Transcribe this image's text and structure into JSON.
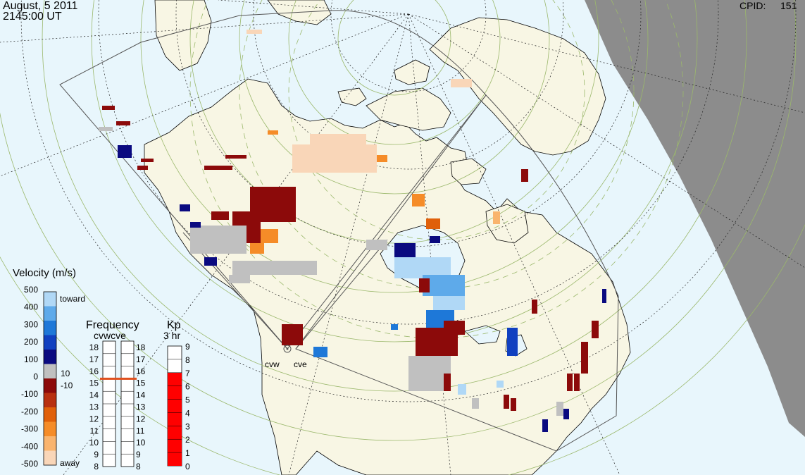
{
  "header": {
    "date": "August, 5 2011",
    "time": "2145:00 UT",
    "cpid_label": "CPID:",
    "cpid_value": "151"
  },
  "colors": {
    "ocean": "#e8f6fc",
    "land": "#f8f6e4",
    "night": "#8c8c8c",
    "ground_scatter": "#c0c0c0"
  },
  "radars": [
    {
      "code": "cvw"
    },
    {
      "code": "cve"
    }
  ],
  "velocity_scale": {
    "title": "Velocity (m/s)",
    "ticks": [
      "500",
      "400",
      "300",
      "200",
      "100",
      "0",
      "-100",
      "-200",
      "-300",
      "-400",
      "-500"
    ],
    "toward_label": "toward",
    "away_label": "away",
    "gs_upper": "10",
    "gs_lower": "-10",
    "colors": [
      "#f9d6b8",
      "#f9b46e",
      "#f58c28",
      "#e0600a",
      "#b83010",
      "#8c0a0a",
      "#c0c0c0",
      "#0a0a80",
      "#1040c0",
      "#1e78d8",
      "#5eaaea",
      "#b0d8f6"
    ]
  },
  "frequency_panel": {
    "title": "Frequency",
    "subtitle": "cvwcve",
    "ticks": [
      "18",
      "17",
      "16",
      "15",
      "14",
      "13",
      "12",
      "11",
      "10",
      "9",
      "8"
    ],
    "cvw_value": 15,
    "cve_value": 15
  },
  "kp_panel": {
    "title": "Kp",
    "subtitle": "3 hr",
    "ticks": [
      "9",
      "8",
      "7",
      "6",
      "5",
      "4",
      "3",
      "2",
      "1",
      "0"
    ],
    "value": 7
  }
}
